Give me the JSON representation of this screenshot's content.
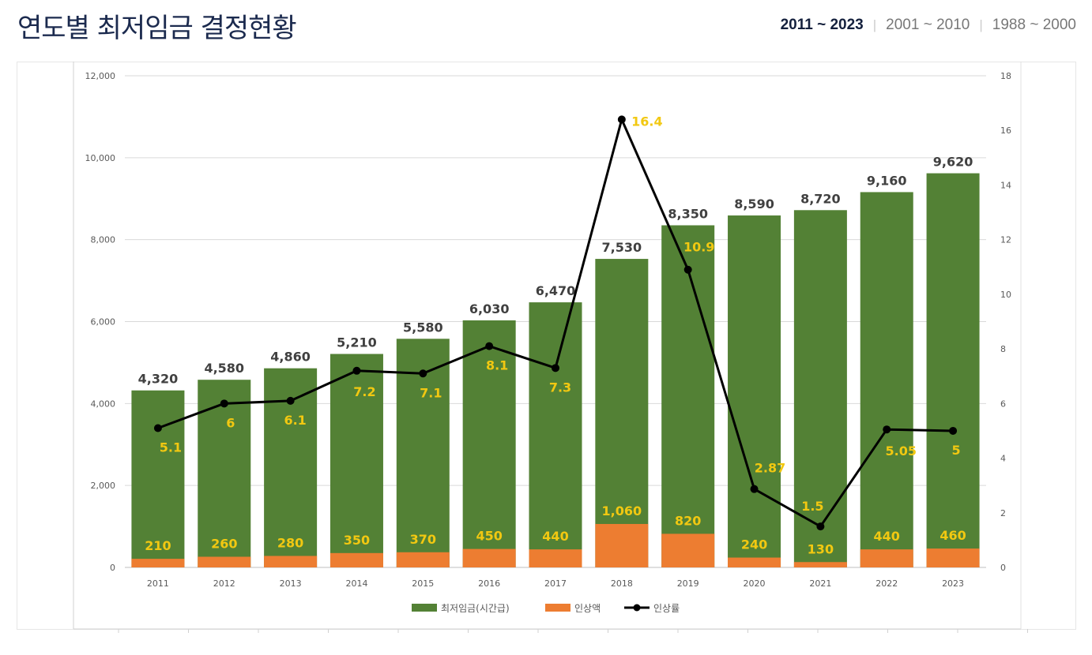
{
  "page": {
    "title": "연도별 최저임금 결정현황"
  },
  "period_tabs": [
    {
      "label": "2011 ~ 2023",
      "active": true
    },
    {
      "label": "2001 ~ 2010",
      "active": false
    },
    {
      "label": "1988 ~ 2000",
      "active": false
    }
  ],
  "chart_data": {
    "type": "bar",
    "stacked": true,
    "categories": [
      "2011",
      "2012",
      "2013",
      "2014",
      "2015",
      "2016",
      "2017",
      "2018",
      "2019",
      "2020",
      "2021",
      "2022",
      "2023"
    ],
    "series": [
      {
        "name": "최저임금(시간급)",
        "type": "bar",
        "color": "#538135",
        "values": [
          4320,
          4580,
          4860,
          5210,
          5580,
          6030,
          6470,
          7530,
          8350,
          8590,
          8720,
          9160,
          9620
        ]
      },
      {
        "name": "인상액",
        "type": "bar",
        "color": "#ed7d31",
        "values": [
          210,
          260,
          280,
          350,
          370,
          450,
          440,
          1060,
          820,
          240,
          130,
          440,
          460
        ]
      },
      {
        "name": "인상률",
        "type": "line",
        "axis": "right",
        "color": "#000000",
        "values": [
          5.1,
          6,
          6.1,
          7.2,
          7.1,
          8.1,
          7.3,
          16.4,
          10.9,
          2.87,
          1.5,
          5.05,
          5
        ]
      }
    ],
    "wage_labels": [
      "4,320",
      "4,580",
      "4,860",
      "5,210",
      "5,580",
      "6,030",
      "6,470",
      "7,530",
      "8,350",
      "8,590",
      "8,720",
      "9,160",
      "9,620"
    ],
    "increase_labels": [
      "210",
      "260",
      "280",
      "350",
      "370",
      "450",
      "440",
      "1,060",
      "820",
      "240",
      "130",
      "440",
      "460"
    ],
    "rate_labels": [
      "5.1",
      "6",
      "6.1",
      "7.2",
      "7.1",
      "8.1",
      "7.3",
      "16.4",
      "10.9",
      "2.87",
      "1.5",
      "5.05",
      "5"
    ],
    "y_left": {
      "min": 0,
      "max": 12000,
      "ticks": [
        "0",
        "2,000",
        "4,000",
        "6,000",
        "8,000",
        "10,000",
        "12,000"
      ]
    },
    "y_right": {
      "min": 0,
      "max": 18,
      "ticks": [
        "0",
        "2",
        "4",
        "6",
        "8",
        "10",
        "12",
        "14",
        "16",
        "18"
      ]
    },
    "grid": true,
    "legend_position": "bottom"
  }
}
